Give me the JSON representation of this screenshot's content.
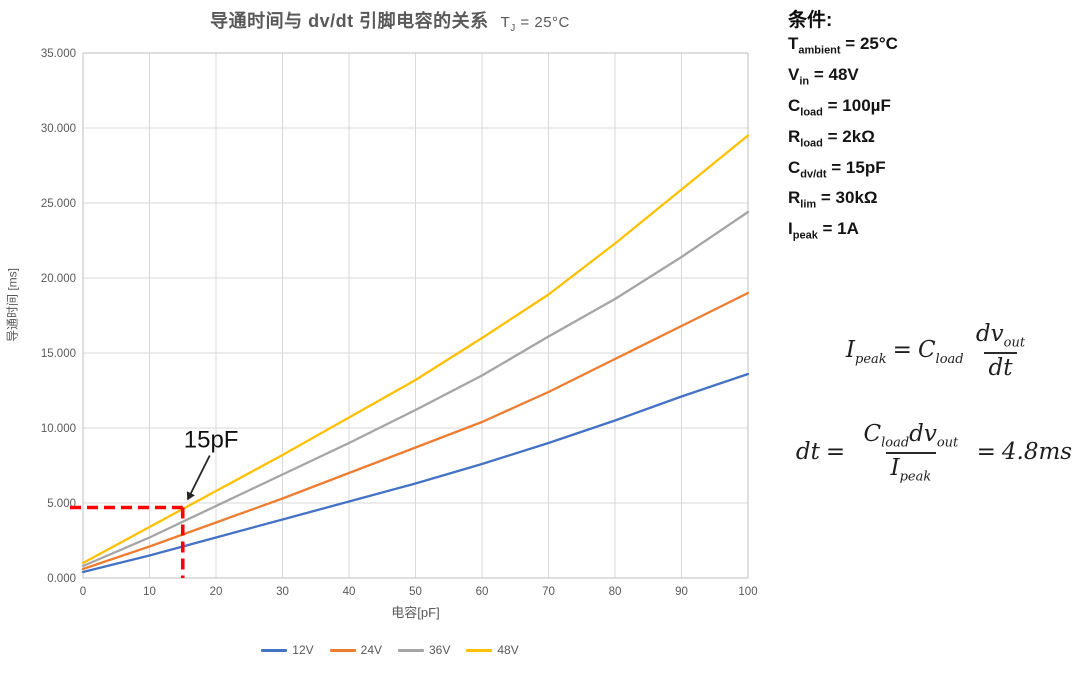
{
  "chart": {
    "title": "导通时间与 dv/dt 引脚电容的关系",
    "condition": {
      "sym": "T",
      "sub": "J",
      "val": " = 25°C"
    }
  },
  "chart_data": {
    "type": "line",
    "x": [
      0,
      10,
      20,
      30,
      40,
      50,
      60,
      70,
      80,
      90,
      100
    ],
    "series": [
      {
        "name": "12V",
        "color": "#4472C4",
        "values": [
          0.4,
          1.5,
          2.7,
          3.9,
          5.1,
          6.3,
          7.6,
          9.0,
          10.5,
          12.1,
          13.6
        ]
      },
      {
        "name": "24V",
        "color": "#ED7D31",
        "values": [
          0.6,
          2.1,
          3.7,
          5.3,
          7.0,
          8.7,
          10.4,
          12.4,
          14.6,
          16.8,
          19.0
        ]
      },
      {
        "name": "36V",
        "color": "#A5A5A5",
        "values": [
          0.8,
          2.7,
          4.8,
          6.9,
          9.0,
          11.2,
          13.5,
          16.1,
          18.6,
          21.4,
          24.4
        ]
      },
      {
        "name": "48V",
        "color": "#FFC000",
        "values": [
          1.0,
          3.4,
          5.8,
          8.2,
          10.7,
          13.2,
          16.0,
          18.9,
          22.3,
          25.9,
          29.5
        ]
      }
    ],
    "xlabel": "电容[pF]",
    "ylabel": "导通时间 [ms]",
    "xlim": [
      0,
      100
    ],
    "ylim": [
      0,
      35
    ],
    "x_tick_step": 10,
    "y_tick_step": 5,
    "y_tick_decimals": 3,
    "grid": true,
    "legend_position": "bottom",
    "annotation": {
      "label": "15pF",
      "x": 15,
      "y": 4.7,
      "dash_color": "#FF0000",
      "arrow_color": "#262626"
    }
  },
  "colors": {
    "gridline": "#D9D9D9",
    "plot_border": "#BFBFBF",
    "tick_label": "#595959",
    "annotation_text": "#111111"
  },
  "conditions": {
    "title": "条件:",
    "items": [
      {
        "sym": "T",
        "sub": "ambient",
        "val": " = 25°C"
      },
      {
        "sym": "V",
        "sub": "in",
        "val": " = 48V"
      },
      {
        "sym": "C",
        "sub": "load",
        "val": "  = 100µF"
      },
      {
        "sym": "R",
        "sub": "load",
        "val": " = 2kΩ"
      },
      {
        "sym": "C",
        "sub": "dv/dt",
        "val": " = 15pF"
      },
      {
        "sym": "R",
        "sub": "lim",
        "val": " = 30kΩ"
      },
      {
        "sym": "I",
        "sub": "peak",
        "val": " = 1A"
      }
    ]
  },
  "formulas": {
    "formula1": {
      "lhs": "I",
      "lhs_sub": "peak",
      "eq": "=",
      "coef": "C",
      "coef_sub": "load",
      "num": "dv",
      "num_sub": "out",
      "den": "dt"
    },
    "formula2": {
      "lhs": "dt",
      "eq": "=",
      "num1": "C",
      "num1_sub": "load",
      "num2": "dv",
      "num2_sub": "out",
      "den": "I",
      "den_sub": "peak",
      "eq2": "=",
      "result": "4.8ms"
    }
  }
}
